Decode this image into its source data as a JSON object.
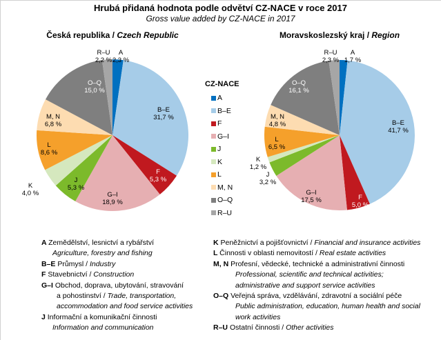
{
  "chart_data": {
    "type": "pie",
    "title": "Hrubá přidaná hodnota podle odvětví CZ-NACE v roce 2017",
    "subtitle": "Gross value added by CZ-NACE in 2017",
    "legend_title": "CZ-NACE",
    "legend_placement": "center",
    "categories": [
      "A",
      "B–E",
      "F",
      "G–I",
      "J",
      "K",
      "L",
      "M, N",
      "O–Q",
      "R–U"
    ],
    "colors": [
      "#0070C0",
      "#A6CCE8",
      "#C0191F",
      "#E6AFB2",
      "#7CBA2B",
      "#D5E8BE",
      "#F5A02B",
      "#FDDCB1",
      "#7F7F7F",
      "#A6A6A6"
    ],
    "series": [
      {
        "name_cz": "Česká republika",
        "name_en": "Czech Republic",
        "values": [
          2.3,
          31.7,
          5.3,
          18.9,
          5.3,
          4.0,
          8.6,
          6.8,
          15.0,
          2.2
        ],
        "labels": [
          "2,3 %",
          "31,7 %",
          "5,3 %",
          "18,9 %",
          "5,3 %",
          "4,0 %",
          "8,6 %",
          "6,8 %",
          "15,0 %",
          "2,2 %"
        ]
      },
      {
        "name_cz": "Moravskoslezský kraj",
        "name_en": "Region",
        "values": [
          1.7,
          41.7,
          5.0,
          17.5,
          3.2,
          1.2,
          6.5,
          4.8,
          16.1,
          2.3
        ],
        "labels": [
          "1,7 %",
          "41,7 %",
          "5,0 %",
          "17,5 %",
          "3,2 %",
          "1,2 %",
          "6,5 %",
          "4,8 %",
          "16,1 %",
          "2,3 %"
        ]
      }
    ]
  },
  "notes": {
    "left": [
      {
        "code": "A",
        "cz": "Zemědělství, lesnictví a rybářství",
        "en": ""
      },
      {
        "code": "",
        "cz": "",
        "en": "Agriculture, forestry and fishing",
        "indent": 1
      },
      {
        "code": "B–E",
        "cz": "Průmysl /",
        "en": "Industry"
      },
      {
        "code": "F",
        "cz": "Stavebnictví /",
        "en": "Construction"
      },
      {
        "code": "G–I",
        "cz": "Obchod, doprava, ubytování, stravování",
        "en": ""
      },
      {
        "code": "",
        "cz": "a pohostinství /",
        "en": "Trade, transportation,",
        "indent": 2
      },
      {
        "code": "",
        "cz": "",
        "en": "accommodation and food service activities",
        "indent": 2
      },
      {
        "code": "J",
        "cz": "Informační a komunikační činnosti",
        "en": ""
      },
      {
        "code": "",
        "cz": "",
        "en": "Information and communication",
        "indent": 1
      }
    ],
    "right": [
      {
        "code": "K",
        "cz": "Peněžnictví a pojišťovnictví /",
        "en": "Financial and insurance activities"
      },
      {
        "code": "L",
        "cz": "Činnosti v oblasti nemovitostí /",
        "en": "Real estate activities"
      },
      {
        "code": "M, N",
        "cz": "Profesní, vědecké, technické a administrativní činnosti",
        "en": ""
      },
      {
        "code": "",
        "cz": "",
        "en": "Professional, scientific and technical activities;",
        "indent": 3
      },
      {
        "code": "",
        "cz": "",
        "en": "administrative and support service activities",
        "indent": 3
      },
      {
        "code": "O–Q",
        "cz": "Veřejná správa, vzdělávání, zdravotní a sociální péče",
        "en": ""
      },
      {
        "code": "",
        "cz": "",
        "en": "Public administration, education, human health and social",
        "indent": 3
      },
      {
        "code": "",
        "cz": "",
        "en": "work activities",
        "indent": 3
      },
      {
        "code": "R–U",
        "cz": "Ostatní činnosti /",
        "en": "Other activities"
      }
    ]
  }
}
